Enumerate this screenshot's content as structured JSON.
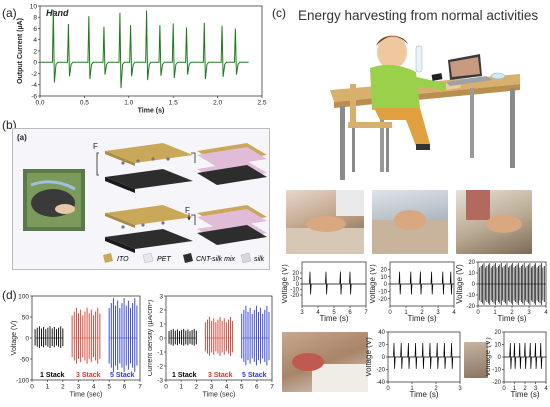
{
  "panels": {
    "a": "(a)",
    "b": "(b)",
    "c": "(c)",
    "d": "(d)",
    "b_inner": "(a)"
  },
  "panel_c_title": "Energy harvesting from normal activities",
  "legend_b": {
    "ito": "ITO",
    "pet": "PET",
    "cnt": "CNT-silk mix",
    "silk": "silk"
  },
  "force_symbol": "F",
  "colors": {
    "green": "#1f7a1f",
    "black": "#000000",
    "red": "#d23a2a",
    "blue": "#2a3ad2",
    "ito": "#c9a85a",
    "pet": "#e6e6ee",
    "cnt": "#2d2d2d",
    "silk": "#d6d6de"
  },
  "chart_data": [
    {
      "id": "panel-a",
      "type": "line",
      "annotation": "Hand",
      "xlabel": "Time (s)",
      "ylabel": "Output Current (µA)",
      "xlim": [
        0,
        2.5
      ],
      "ylim": [
        -6,
        10
      ],
      "xticks": [
        "0.0",
        "0.5",
        "1.0",
        "1.5",
        "2.0",
        "2.5"
      ],
      "yticks": [
        "-6",
        "-4",
        "-2",
        "0",
        "2",
        "4",
        "6",
        "8",
        "10"
      ],
      "spike_times": [
        0.15,
        0.32,
        0.55,
        0.72,
        0.9,
        1.02,
        1.2,
        1.35,
        1.5,
        1.65,
        1.85,
        2.05,
        2.2
      ],
      "spike_peaks": [
        9.3,
        6.8,
        8.2,
        6.3,
        8.8,
        6.6,
        9.2,
        6.6,
        6.9,
        6.2,
        7.0,
        6.5,
        6.0
      ],
      "spike_troughs": [
        -3.6,
        -2.5,
        -3.0,
        -2.2,
        -4.6,
        -2.5,
        -3.2,
        -2.4,
        -2.8,
        -2.2,
        -3.0,
        -2.6,
        -2.2
      ]
    },
    {
      "id": "panel-d-voltage",
      "type": "line",
      "xlabel": "Time (sec)",
      "ylabel": "Voltage (V)",
      "xlim": [
        0,
        7
      ],
      "ylim": [
        -100,
        100
      ],
      "xticks": [
        "0",
        "1",
        "2",
        "3",
        "4",
        "5",
        "6",
        "7"
      ],
      "yticks": [
        "-100",
        "-50",
        "0",
        "50",
        "100"
      ],
      "series": [
        {
          "name": "1 Stack",
          "x_range": [
            0.2,
            2.0
          ],
          "amplitude": 28
        },
        {
          "name": "3 Stack",
          "x_range": [
            2.6,
            4.4
          ],
          "amplitude": 72
        },
        {
          "name": "5 Stack",
          "x_range": [
            5.0,
            6.8
          ],
          "amplitude": 95
        }
      ]
    },
    {
      "id": "panel-d-current",
      "type": "line",
      "xlabel": "Time (sec)",
      "ylabel": "Current density (µA/cm²)",
      "xlim": [
        0,
        7
      ],
      "ylim": [
        -3,
        3
      ],
      "xticks": [
        "0",
        "1",
        "2",
        "3",
        "4",
        "5",
        "6",
        "7"
      ],
      "yticks": [
        "-3",
        "-2",
        "-1",
        "0",
        "1",
        "2",
        "3"
      ],
      "series": [
        {
          "name": "1 Stack",
          "x_range": [
            0.2,
            2.0
          ],
          "amplitude": 0.65
        },
        {
          "name": "3 Stack",
          "x_range": [
            2.6,
            4.4
          ],
          "amplitude": 1.5
        },
        {
          "name": "5 Stack",
          "x_range": [
            5.0,
            6.8
          ],
          "amplitude": 2.3
        }
      ]
    },
    {
      "id": "panel-c-plot1",
      "type": "line",
      "xlabel": "Time (s)",
      "ylabel": "Voltage (V)",
      "xlim": [
        3,
        7
      ],
      "ylim": [
        -40,
        40
      ],
      "xticks": [
        "3",
        "4",
        "5",
        "6",
        "7"
      ],
      "yticks": [
        "20",
        "10",
        "0",
        "-10",
        "-20"
      ],
      "spikes": [
        3.5,
        4.5,
        5.4,
        6.0
      ]
    },
    {
      "id": "panel-c-plot2",
      "type": "line",
      "xlabel": "Time (s)",
      "ylabel": "Voltage (V)",
      "xlim": [
        0,
        4
      ],
      "ylim": [
        -30,
        30
      ],
      "xticks": [
        "0",
        "1",
        "2",
        "3",
        "4"
      ],
      "yticks": [
        "20",
        "10",
        "0",
        "-10",
        "-20"
      ],
      "spikes": [
        0.6,
        1.3,
        1.9,
        2.6,
        3.3,
        3.8
      ]
    },
    {
      "id": "panel-c-plot3",
      "type": "line",
      "xlabel": "Time (s)",
      "ylabel": "Voltage (V)",
      "xlim": [
        0,
        4
      ],
      "ylim": [
        -20,
        20
      ],
      "xticks": [
        "0",
        "1",
        "2",
        "3",
        "4"
      ],
      "yticks": [
        "20",
        "10",
        "0",
        "-10",
        "-20"
      ],
      "dense": true
    },
    {
      "id": "panel-c-plot4",
      "type": "line",
      "xlabel": "Time (s)",
      "ylabel": "Voltage (V)",
      "xlim": [
        0,
        3
      ],
      "ylim": [
        -40,
        40
      ],
      "xticks": [
        "0",
        "1",
        "2",
        "3"
      ],
      "yticks": [
        "40",
        "20",
        "0",
        "-20",
        "-40"
      ],
      "spikes": [
        0.25,
        0.55,
        0.85,
        1.15,
        1.45,
        1.75,
        2.05,
        2.35,
        2.65
      ]
    },
    {
      "id": "panel-c-plot5",
      "type": "line",
      "xlabel": "Time (s)",
      "ylabel": "Voltage (V)",
      "xlim": [
        0,
        4
      ],
      "ylim": [
        -20,
        20
      ],
      "xticks": [
        "0",
        "1",
        "2",
        "3",
        "4"
      ],
      "yticks": [
        "20",
        "10",
        "0",
        "-10",
        "-20"
      ],
      "spikes": [
        0.6,
        1.0,
        1.5,
        2.0,
        2.5,
        3.0,
        3.5
      ]
    }
  ]
}
